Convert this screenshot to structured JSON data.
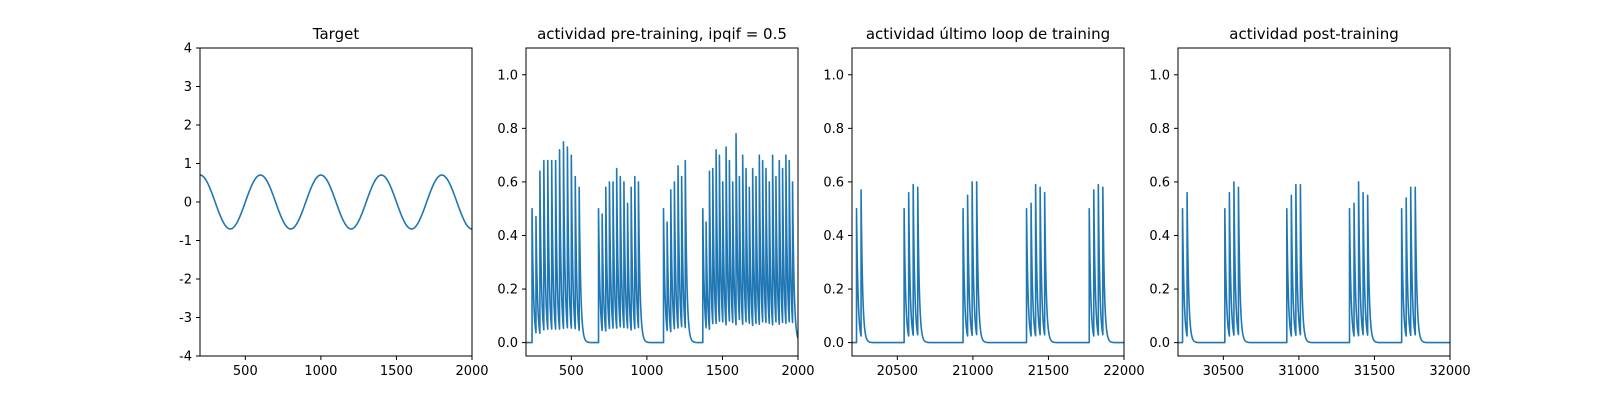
{
  "chart_data": [
    {
      "type": "line",
      "title": "Target",
      "xlim": [
        200,
        2000
      ],
      "ylim": [
        -4,
        4
      ],
      "xticks": [
        500,
        1000,
        1500,
        2000
      ],
      "yticks": [
        -4,
        -3,
        -2,
        -1,
        0,
        1,
        2,
        3,
        4
      ],
      "color": "#1f77b4",
      "series": [
        {
          "kind": "sine",
          "amplitude": 0.7,
          "period": 400,
          "peak_at": 200,
          "x_start": 200,
          "x_end": 2000
        }
      ]
    },
    {
      "type": "line",
      "title": "actividad pre-training, ipqif = 0.5",
      "xlim": [
        200,
        2000
      ],
      "ylim": [
        -0.05,
        1.1
      ],
      "xticks": [
        500,
        1000,
        1500,
        2000
      ],
      "yticks": [
        0.0,
        0.2,
        0.4,
        0.6,
        0.8,
        1.0
      ],
      "color": "#1f77b4",
      "series": [
        {
          "kind": "spike_bursts",
          "decay": 10,
          "bursts": [
            {
              "start": 240,
              "isi": 26,
              "peaks": [
                0.5,
                0.47,
                0.64,
                0.68,
                0.68,
                0.68,
                0.68,
                0.72,
                0.75,
                0.73,
                0.7,
                0.62,
                0.58
              ]
            },
            {
              "start": 680,
              "isi": 24,
              "peaks": [
                0.5,
                0.48,
                0.58,
                0.6,
                0.6,
                0.65,
                0.62,
                0.6,
                0.52,
                0.58,
                0.62,
                0.6
              ]
            },
            {
              "start": 1110,
              "isi": 24,
              "peaks": [
                0.5,
                0.45,
                0.57,
                0.6,
                0.66,
                0.62,
                0.68
              ]
            },
            {
              "start": 1370,
              "isi": 22,
              "peaks": [
                0.5,
                0.45,
                0.64,
                0.65,
                0.72,
                0.7,
                0.6,
                0.73,
                0.68,
                0.6,
                0.78,
                0.62,
                0.7,
                0.65,
                0.58,
                0.65,
                0.62,
                0.7,
                0.68,
                0.65,
                0.6,
                0.7,
                0.62,
                0.68,
                0.65,
                0.7,
                0.68,
                0.6
              ]
            }
          ]
        }
      ]
    },
    {
      "type": "line",
      "title": "actividad último loop de training",
      "xlim": [
        20200,
        22000
      ],
      "ylim": [
        -0.05,
        1.1
      ],
      "xticks": [
        20500,
        21000,
        21500,
        22000
      ],
      "yticks": [
        0.0,
        0.2,
        0.4,
        0.6,
        0.8,
        1.0
      ],
      "color": "#1f77b4",
      "series": [
        {
          "kind": "spike_bursts",
          "decay": 10,
          "bursts": [
            {
              "start": 20230,
              "isi": 30,
              "peaks": [
                0.5,
                0.57
              ]
            },
            {
              "start": 20545,
              "isi": 30,
              "peaks": [
                0.5,
                0.56,
                0.59,
                0.58
              ]
            },
            {
              "start": 20935,
              "isi": 30,
              "peaks": [
                0.5,
                0.55,
                0.6,
                0.6
              ]
            },
            {
              "start": 21355,
              "isi": 30,
              "peaks": [
                0.5,
                0.52,
                0.59,
                0.58,
                0.56
              ]
            },
            {
              "start": 21770,
              "isi": 30,
              "peaks": [
                0.5,
                0.57,
                0.59,
                0.58
              ]
            }
          ]
        }
      ]
    },
    {
      "type": "line",
      "title": "actividad post-training",
      "xlim": [
        30200,
        32000
      ],
      "ylim": [
        -0.05,
        1.1
      ],
      "xticks": [
        30500,
        31000,
        31500,
        32000
      ],
      "yticks": [
        0.0,
        0.2,
        0.4,
        0.6,
        0.8,
        1.0
      ],
      "color": "#1f77b4",
      "series": [
        {
          "kind": "spike_bursts",
          "decay": 10,
          "bursts": [
            {
              "start": 30230,
              "isi": 30,
              "peaks": [
                0.5,
                0.56
              ]
            },
            {
              "start": 30510,
              "isi": 30,
              "peaks": [
                0.5,
                0.56,
                0.6,
                0.58
              ]
            },
            {
              "start": 30920,
              "isi": 30,
              "peaks": [
                0.5,
                0.55,
                0.59,
                0.59
              ]
            },
            {
              "start": 31335,
              "isi": 30,
              "peaks": [
                0.5,
                0.52,
                0.6,
                0.56,
                0.55
              ]
            },
            {
              "start": 31680,
              "isi": 30,
              "peaks": [
                0.5,
                0.54,
                0.58,
                0.58
              ]
            }
          ]
        }
      ]
    }
  ]
}
